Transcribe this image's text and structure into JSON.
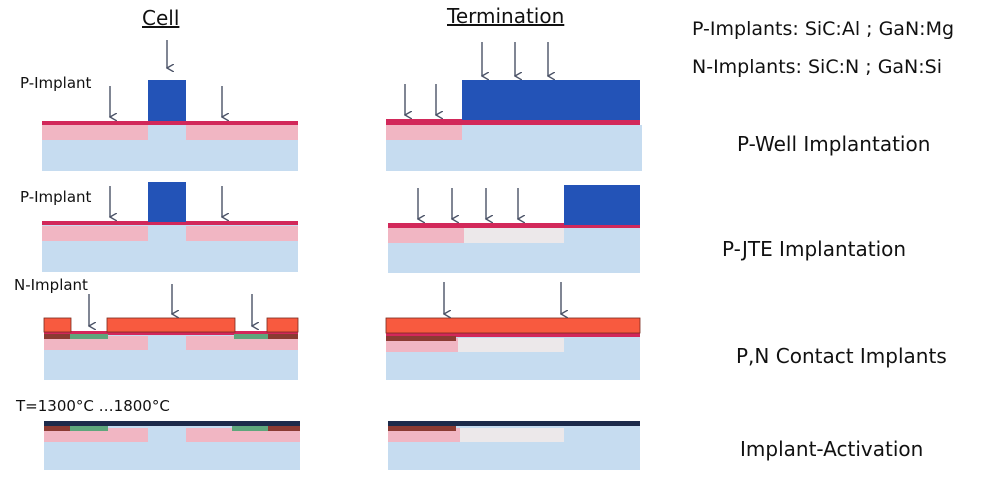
{
  "columns": {
    "cell": "Cell",
    "termination": "Termination"
  },
  "materials": {
    "p_implants": "P-Implants: SiC:Al ; GaN:Mg",
    "n_implants": "N-Implants: SiC:N ; GaN:Si"
  },
  "side_labels": {
    "p_implant_1": "P-Implant",
    "p_implant_2": "P-Implant",
    "n_implant": "N-Implant",
    "temperature": "T=1300°C …1800°C"
  },
  "steps": [
    {
      "label": "P-Well Implantation"
    },
    {
      "label": "P-JTE Implantation"
    },
    {
      "label": "P,N Contact Implants"
    },
    {
      "label": "Implant-Activation"
    }
  ],
  "colors": {
    "substrate": "#c6dcf0",
    "p_well": "#f1b6c3",
    "jte": "#ece8ea",
    "surface_layer": "#d2285a",
    "mask_blue": "#2353b7",
    "mask_orange": "#f85a3f",
    "p_contact": "#8b3a32",
    "n_contact": "#5ea67c",
    "activation_cap": "#1c2a4a",
    "arrow": "#4a5266"
  }
}
